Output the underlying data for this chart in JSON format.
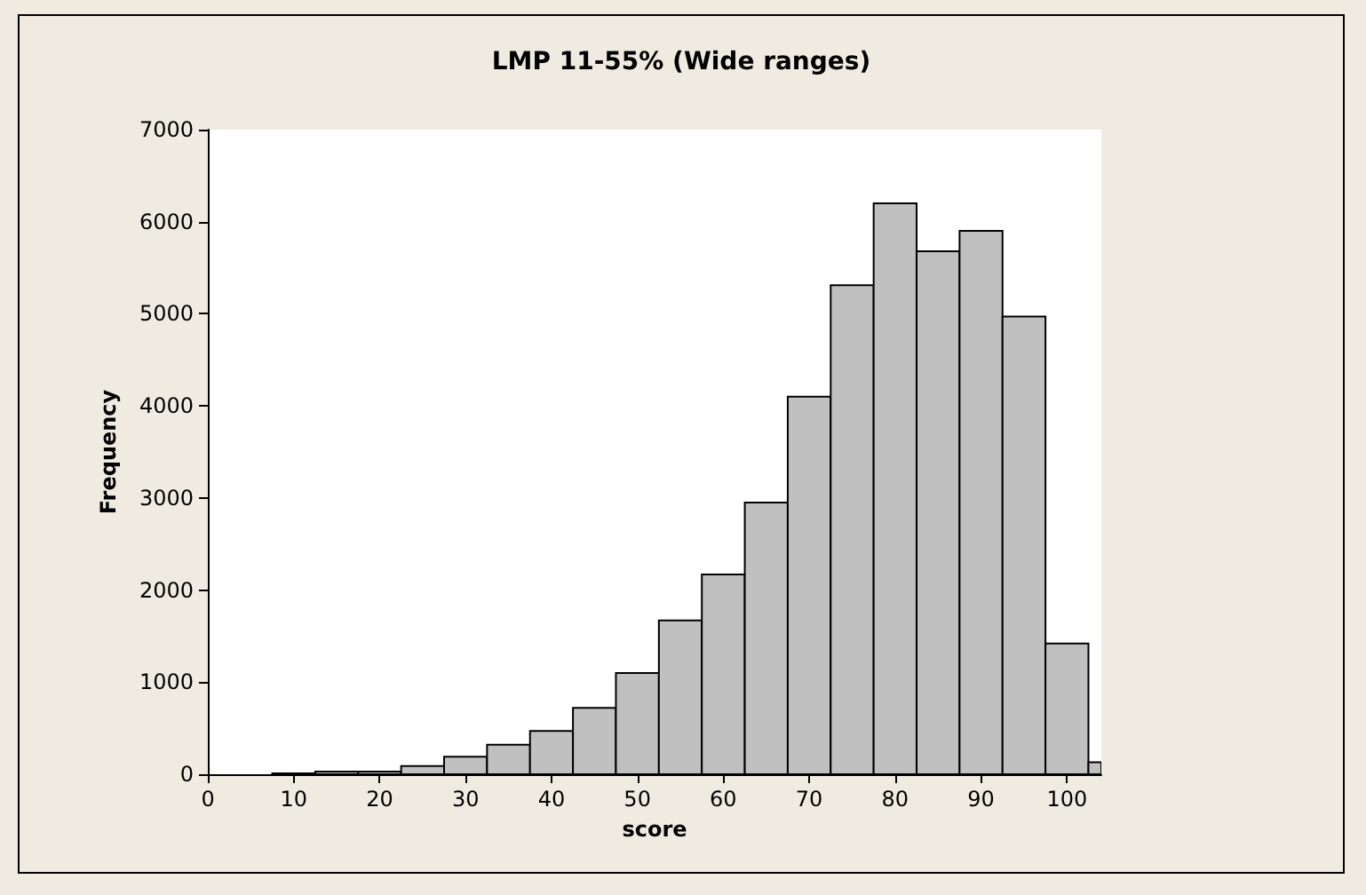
{
  "chart_data": {
    "type": "histogram",
    "title": "LMP 11-55% (Wide ranges)",
    "xlabel": "score",
    "ylabel": "Frequency",
    "bins": [
      7.5,
      12.5,
      17.5,
      22.5,
      27.5,
      32.5,
      37.5,
      42.5,
      47.5,
      52.5,
      57.5,
      62.5,
      67.5,
      72.5,
      77.5,
      82.5,
      87.5,
      92.5,
      97.5,
      102.5,
      104
    ],
    "values": [
      10,
      30,
      30,
      90,
      190,
      320,
      470,
      720,
      1100,
      1670,
      2170,
      2950,
      4100,
      5310,
      6200,
      5680,
      5900,
      4970,
      1420,
      130
    ],
    "color": "#c0c0c0",
    "xlim": [
      0,
      104
    ],
    "xticks": [
      0,
      10,
      20,
      30,
      40,
      50,
      60,
      70,
      80,
      90,
      100
    ],
    "ylim": [
      0,
      7000
    ],
    "yticks": [
      0,
      1000,
      2000,
      3000,
      4000,
      5000,
      6000,
      7000
    ],
    "grid": false
  }
}
